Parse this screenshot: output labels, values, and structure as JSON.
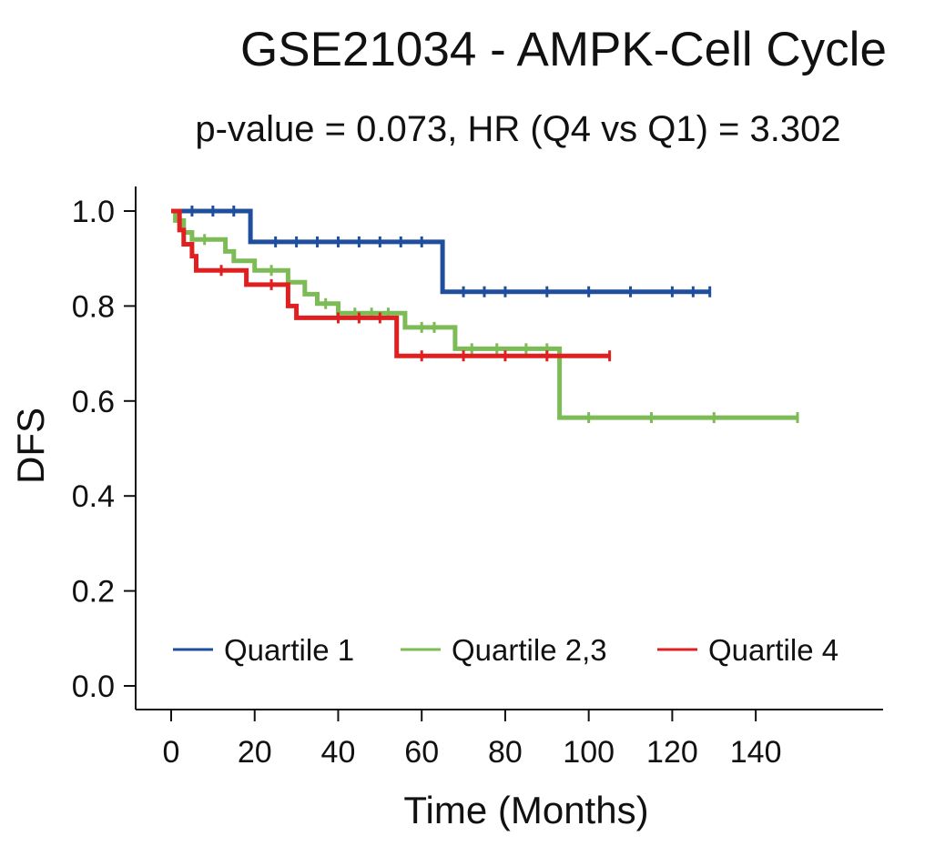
{
  "chart_data": {
    "type": "line",
    "title": "GSE21034 - AMPK-Cell Cycle",
    "subtitle": "p-value = 0.073, HR (Q4 vs Q1) = 3.302",
    "xlabel": "Time (Months)",
    "ylabel": "DFS",
    "xlim": [
      0,
      150
    ],
    "ylim": [
      0,
      1.0
    ],
    "xticks": [
      "0",
      "20",
      "40",
      "60",
      "80",
      "100",
      "120",
      "140"
    ],
    "yticks": [
      "0.0",
      "0.2",
      "0.4",
      "0.6",
      "0.8",
      "1.0"
    ],
    "grid": false,
    "legend_position": "bottom",
    "series": [
      {
        "name": "Quartile 1",
        "color": "#1f4e9c",
        "step": true,
        "x": [
          0,
          19,
          19,
          65,
          65,
          129
        ],
        "y": [
          1.0,
          1.0,
          0.935,
          0.935,
          0.83,
          0.83
        ],
        "censor_x": [
          5,
          10,
          15,
          25,
          30,
          35,
          40,
          45,
          50,
          55,
          60,
          70,
          75,
          80,
          90,
          100,
          110,
          120,
          125,
          129
        ]
      },
      {
        "name": "Quartile 2,3",
        "color": "#7dbb57",
        "step": true,
        "x": [
          0,
          1,
          1,
          3,
          3,
          5,
          5,
          13,
          13,
          15,
          15,
          20,
          20,
          28,
          28,
          32,
          32,
          35,
          35,
          40,
          40,
          56,
          56,
          68,
          68,
          93,
          93,
          150
        ],
        "y": [
          1.0,
          1.0,
          0.98,
          0.98,
          0.955,
          0.955,
          0.94,
          0.94,
          0.915,
          0.915,
          0.895,
          0.895,
          0.875,
          0.875,
          0.85,
          0.85,
          0.825,
          0.825,
          0.805,
          0.805,
          0.785,
          0.785,
          0.755,
          0.755,
          0.71,
          0.71,
          0.565,
          0.565
        ],
        "censor_x": [
          8,
          24,
          37,
          44,
          48,
          52,
          60,
          63,
          72,
          78,
          85,
          90,
          100,
          115,
          130,
          150
        ]
      },
      {
        "name": "Quartile 4",
        "color": "#e02020",
        "step": true,
        "x": [
          0,
          2,
          2,
          3,
          3,
          5,
          5,
          6,
          6,
          18,
          18,
          28,
          28,
          30,
          30,
          54,
          54,
          105
        ],
        "y": [
          1.0,
          1.0,
          0.96,
          0.96,
          0.93,
          0.93,
          0.905,
          0.905,
          0.875,
          0.875,
          0.845,
          0.845,
          0.8,
          0.8,
          0.775,
          0.775,
          0.695,
          0.695
        ],
        "censor_x": [
          12,
          24,
          40,
          45,
          50,
          60,
          70,
          80,
          90,
          105
        ]
      }
    ]
  }
}
